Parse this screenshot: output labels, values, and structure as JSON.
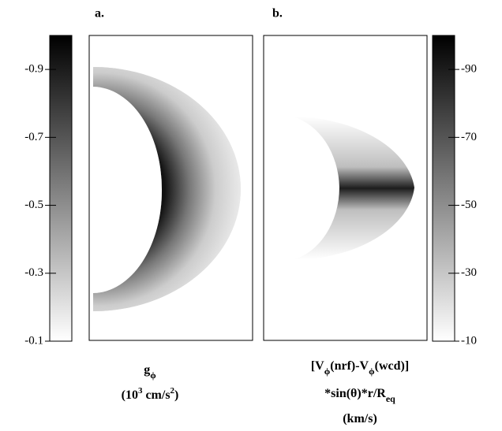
{
  "chart_data": [
    {
      "type": "heatmap",
      "panel_label": "a.",
      "colorbar_side": "left",
      "colorbar_lim": [
        -0.1,
        -1.0
      ],
      "colorbar_ticks": [
        -0.9,
        -0.7,
        -0.5,
        -0.3,
        -0.1
      ],
      "xlabel": [
        [
          {
            "text": "g"
          },
          {
            "sub": "ϕ"
          }
        ],
        [
          {
            "text": "(10"
          },
          {
            "sup": "3"
          },
          {
            "text": " cm/s"
          },
          {
            "sup": "2"
          },
          {
            "text": ")"
          }
        ]
      ]
    },
    {
      "type": "heatmap",
      "panel_label": "b.",
      "colorbar_side": "right",
      "colorbar_lim": [
        -10,
        -100
      ],
      "colorbar_ticks": [
        -90,
        -70,
        -50,
        -30,
        -10
      ],
      "xlabel": [
        [
          {
            "text": "[V"
          },
          {
            "sub": "ϕ"
          },
          {
            "text": "(nrf)-V"
          },
          {
            "sub": "ϕ"
          },
          {
            "text": "(wcd)]"
          }
        ],
        [
          {
            "text": "*sin(θ)*r/R"
          },
          {
            "sub": "eq"
          }
        ],
        [
          {
            "text": "(km/s)"
          }
        ]
      ]
    }
  ]
}
